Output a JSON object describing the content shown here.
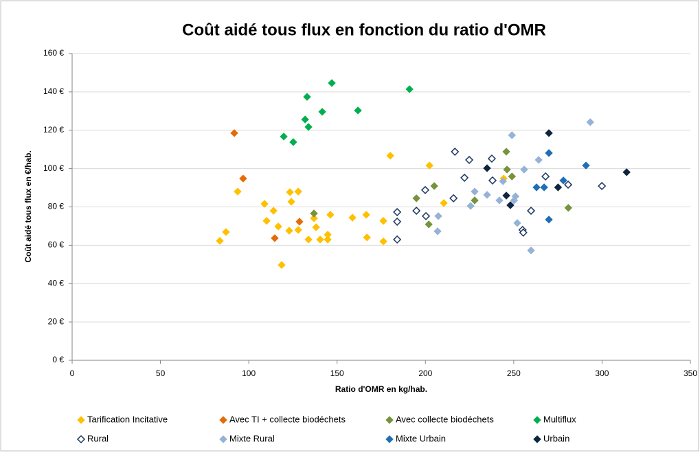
{
  "chart_data": {
    "type": "scatter",
    "title": "Coût aidé tous flux en fonction du ratio d'OMR",
    "x_label": "Ratio d'OMR en kg/hab.",
    "y_label": "Coût aidé tous flux en €/hab.",
    "xlim": [
      0,
      350
    ],
    "xticks": [
      0,
      50,
      100,
      150,
      200,
      250,
      300,
      350
    ],
    "ylim": [
      0,
      160
    ],
    "yticks": [
      {
        "value": 0,
        "label": "0 €"
      },
      {
        "value": 20,
        "label": "20 €"
      },
      {
        "value": 40,
        "label": "40 €"
      },
      {
        "value": 60,
        "label": "60 €"
      },
      {
        "value": 80,
        "label": "80 €"
      },
      {
        "value": 100,
        "label": "100 €"
      },
      {
        "value": 120,
        "label": "120 €"
      },
      {
        "value": 140,
        "label": "140 €"
      },
      {
        "value": 160,
        "label": "160 €"
      }
    ],
    "grid": true,
    "legend": "bottom",
    "marker": "diamond",
    "series": [
      {
        "name": "Tarification Incitative",
        "color": "#ffc000",
        "filled": true,
        "x": [
          83.6,
          87.1,
          93.7,
          108.9,
          110.1,
          114.0,
          116.7,
          118.6,
          122.9,
          123.3,
          124.1,
          128.0,
          128.0,
          133.8,
          136.9,
          138.1,
          140.4,
          144.7,
          144.7,
          146.2,
          158.7,
          166.5,
          166.9,
          176.2,
          176.2,
          180.1,
          202.3,
          210.4,
          244.3
        ],
        "values": [
          62.3,
          66.9,
          88.0,
          81.6,
          72.7,
          78.0,
          69.8,
          49.7,
          67.6,
          87.7,
          82.7,
          88.0,
          68.0,
          63.0,
          74.1,
          69.4,
          63.0,
          65.5,
          63.0,
          75.9,
          74.4,
          75.9,
          64.1,
          72.7,
          62.0,
          106.7,
          101.6,
          82.0,
          94.8
        ]
      },
      {
        "name": "Avec TI + collecte biodéchets",
        "color": "#e36c09",
        "filled": true,
        "x": [
          91.8,
          96.8,
          114.7,
          128.7
        ],
        "values": [
          118.5,
          94.8,
          63.7,
          72.3
        ]
      },
      {
        "name": "Avec collecte biodéchets",
        "color": "#77933c",
        "filled": true,
        "x": [
          136.9,
          194.9,
          201.9,
          205.0,
          227.9,
          245.8,
          246.2,
          249.0,
          280.9
        ],
        "values": [
          76.6,
          84.5,
          70.9,
          90.9,
          83.4,
          108.8,
          99.5,
          95.9,
          79.5
        ]
      },
      {
        "name": "Multiflux",
        "color": "#00b050",
        "filled": true,
        "x": [
          119.8,
          125.2,
          131.9,
          133.0,
          133.8,
          141.6,
          147.0,
          161.8,
          191.0
        ],
        "values": [
          116.7,
          113.8,
          125.6,
          137.4,
          121.7,
          129.6,
          144.6,
          130.3,
          141.4
        ]
      },
      {
        "name": "Rural",
        "color": "#1f3864",
        "filled": false,
        "x": [
          184.0,
          184.0,
          184.0,
          194.9,
          199.9,
          200.3,
          215.9,
          216.7,
          222.1,
          224.8,
          237.6,
          238.0,
          255.0,
          255.4,
          259.8,
          268.0,
          280.8,
          299.9
        ],
        "values": [
          77.3,
          72.3,
          63.0,
          78.0,
          88.8,
          75.2,
          84.5,
          108.8,
          95.2,
          104.5,
          105.2,
          93.8,
          68.0,
          66.6,
          78.0,
          95.9,
          91.6,
          90.9
        ]
      },
      {
        "name": "Mixte Rural",
        "color": "#95b3d7",
        "filled": true,
        "x": [
          206.9,
          207.3,
          225.6,
          227.9,
          234.9,
          241.9,
          243.9,
          249.0,
          250.2,
          251.0,
          252.0,
          255.9,
          259.8,
          264.1,
          293.3
        ],
        "values": [
          67.3,
          75.2,
          80.5,
          88.0,
          86.3,
          83.4,
          93.4,
          117.4,
          83.4,
          85.5,
          71.6,
          99.5,
          57.3,
          104.5,
          124.2
        ]
      },
      {
        "name": "Mixte Urbain",
        "color": "#1f6fb5",
        "filled": true,
        "x": [
          262.9,
          267.2,
          269.9,
          269.9,
          278.1,
          290.9
        ],
        "values": [
          90.2,
          90.2,
          108.1,
          73.4,
          93.8,
          101.6
        ]
      },
      {
        "name": "Urbain",
        "color": "#0f243e",
        "filled": true,
        "x": [
          234.9,
          245.8,
          248.1,
          269.9,
          275.1,
          313.9
        ],
        "values": [
          100.2,
          85.9,
          80.9,
          118.5,
          90.2,
          98.1
        ]
      }
    ]
  }
}
